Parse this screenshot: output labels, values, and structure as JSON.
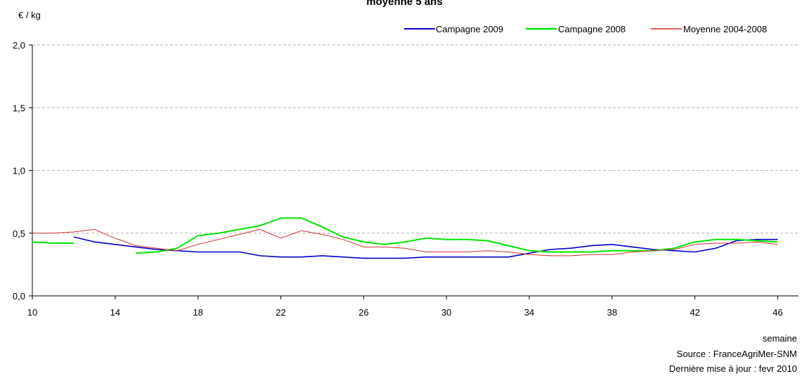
{
  "chart_data": {
    "type": "line",
    "title": "moyenne 5 ans",
    "ylabel": "€ / kg",
    "xlabel": "semaine",
    "xlim": [
      10,
      47
    ],
    "ylim": [
      0,
      2
    ],
    "y_ticks": [
      "0,0",
      "0,5",
      "1,0",
      "1,5",
      "2,0"
    ],
    "y_tick_values": [
      0,
      0.5,
      1,
      1.5,
      2
    ],
    "x_ticks": [
      10,
      14,
      18,
      22,
      26,
      30,
      34,
      38,
      42,
      46
    ],
    "grid": "horizontal dashed",
    "legend_position": "top-right",
    "series": [
      {
        "name": "Campagne 2009",
        "color": "#0000cc",
        "x": [
          12,
          13,
          14,
          15,
          16,
          17,
          18,
          19,
          20,
          21,
          22,
          23,
          24,
          25,
          26,
          27,
          28,
          29,
          30,
          31,
          32,
          33,
          34,
          35,
          36,
          37,
          38,
          39,
          40,
          41,
          42,
          43,
          44,
          45,
          46
        ],
        "values": [
          0.47,
          0.43,
          0.41,
          0.39,
          0.37,
          0.36,
          0.35,
          0.35,
          0.35,
          0.32,
          0.31,
          0.31,
          0.32,
          0.31,
          0.3,
          0.3,
          0.3,
          0.31,
          0.31,
          0.31,
          0.31,
          0.31,
          0.34,
          0.37,
          0.38,
          0.4,
          0.41,
          0.39,
          0.37,
          0.36,
          0.35,
          0.38,
          0.44,
          0.45,
          0.45
        ]
      },
      {
        "name": "Campagne 2008",
        "color": "#00e600",
        "segments": [
          {
            "x": [
              10,
              11,
              12
            ],
            "values": [
              0.43,
              0.42,
              0.42
            ]
          },
          {
            "x": [
              15,
              16,
              17,
              18,
              19,
              20,
              21,
              22,
              23,
              24,
              25,
              26,
              27,
              28,
              29,
              30,
              31,
              32,
              33,
              34,
              35,
              36,
              37,
              38,
              39,
              40,
              41,
              42,
              43,
              44,
              45,
              46
            ],
            "values": [
              0.34,
              0.35,
              0.38,
              0.48,
              0.5,
              0.53,
              0.56,
              0.62,
              0.62,
              0.55,
              0.47,
              0.43,
              0.41,
              0.43,
              0.46,
              0.45,
              0.45,
              0.44,
              0.4,
              0.36,
              0.35,
              0.35,
              0.35,
              0.36,
              0.36,
              0.36,
              0.38,
              0.43,
              0.45,
              0.45,
              0.44,
              0.43
            ]
          }
        ]
      },
      {
        "name": "Moyenne 2004-2008",
        "color": "#d03030",
        "x": [
          10,
          11,
          12,
          13,
          14,
          15,
          16,
          17,
          18,
          19,
          20,
          21,
          22,
          23,
          24,
          25,
          26,
          27,
          28,
          29,
          30,
          31,
          32,
          33,
          34,
          35,
          36,
          37,
          38,
          39,
          40,
          41,
          42,
          43,
          44,
          45,
          46
        ],
        "values": [
          0.5,
          0.5,
          0.51,
          0.53,
          0.46,
          0.4,
          0.38,
          0.36,
          0.41,
          0.45,
          0.49,
          0.53,
          0.46,
          0.52,
          0.49,
          0.45,
          0.39,
          0.39,
          0.38,
          0.35,
          0.35,
          0.35,
          0.36,
          0.35,
          0.33,
          0.32,
          0.32,
          0.33,
          0.33,
          0.35,
          0.36,
          0.37,
          0.41,
          0.42,
          0.42,
          0.43,
          0.41
        ]
      }
    ]
  },
  "notes": {
    "source": "Source : FranceAgriMer-SNM",
    "updated": "Dernière mise à jour : fevr 2010"
  }
}
